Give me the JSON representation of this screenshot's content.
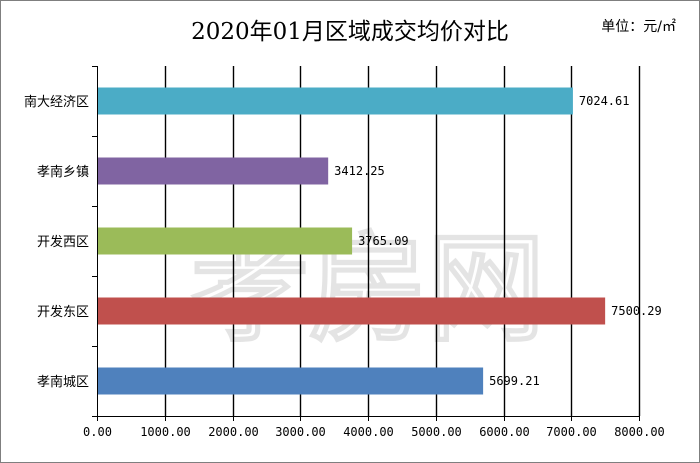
{
  "chart_data": {
    "type": "bar",
    "orientation": "horizontal",
    "title": "2020年01月区域成交均价对比",
    "unit": "单位：元/㎡",
    "categories": [
      "南大经济区",
      "孝南乡镇",
      "开发西区",
      "开发东区",
      "孝南城区"
    ],
    "values": [
      7024.61,
      3412.25,
      3765.09,
      7500.29,
      5699.21
    ],
    "value_labels": [
      "7024.61",
      "3412.25",
      "3765.09",
      "7500.29",
      "5699.21"
    ],
    "colors": [
      "#4bacc6",
      "#8064a2",
      "#9bbb59",
      "#c0504d",
      "#4f81bd"
    ],
    "xlim": [
      0,
      8000
    ],
    "xticks": [
      0,
      1000,
      2000,
      3000,
      4000,
      5000,
      6000,
      7000,
      8000
    ],
    "xtick_labels": [
      "0.00",
      "1000.00",
      "2000.00",
      "3000.00",
      "4000.00",
      "5000.00",
      "6000.00",
      "7000.00",
      "8000.00"
    ],
    "grid": true,
    "watermark": "孝房网"
  }
}
